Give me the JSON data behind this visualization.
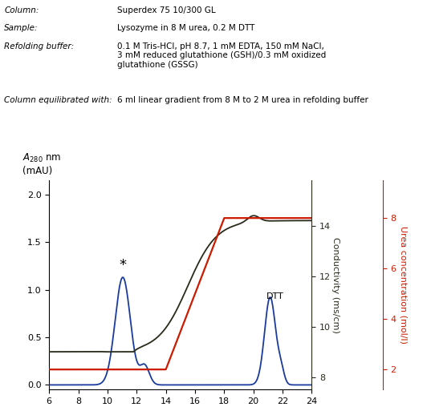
{
  "xlim": [
    6,
    24
  ],
  "xticks": [
    6,
    8,
    10,
    12,
    14,
    16,
    18,
    20,
    22,
    24
  ],
  "ylim_left": [
    -0.05,
    2.15
  ],
  "yticks_left": [
    0.0,
    0.5,
    1.0,
    1.5,
    2.0
  ],
  "ylim_cond": [
    7.5,
    15.8
  ],
  "yticks_cond": [
    8,
    10,
    12,
    14
  ],
  "ylim_urea": [
    1.2,
    9.5
  ],
  "yticks_urea": [
    2,
    4,
    6,
    8
  ],
  "bg_color": "#ffffff",
  "blue_color": "#1a3a9e",
  "black_color": "#2a2a1a",
  "red_color": "#cc1a00",
  "header": [
    [
      "Column:",
      "Superdex 75 10/300 GL"
    ],
    [
      "Sample:",
      "Lysozyme in 8 M urea, 0.2 M DTT"
    ],
    [
      "Refolding buffer:",
      "0.1 M Tris-HCl, pH 8.7, 1 mM EDTA, 150 mM NaCl,\n3 mM reduced glutathione (GSH)/0.3 mM oxidized\nglutathione (GSSG)"
    ],
    [
      "Column equilibrated with:",
      "6 ml linear gradient from 8 M to 2 M urea in refolding buffer"
    ]
  ]
}
